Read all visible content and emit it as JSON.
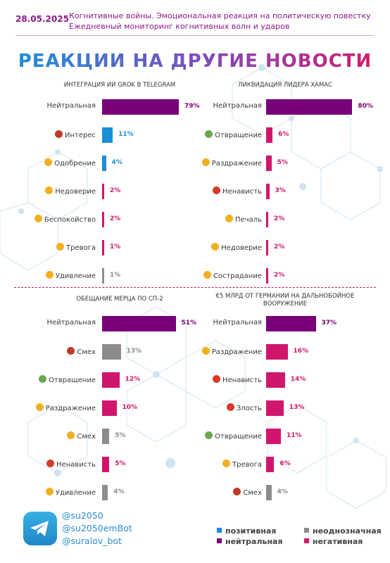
{
  "header": {
    "date": "28.05.2025",
    "line1": "Когнитивные войны. Эмоциональная реакция на политическую повестку",
    "line2": "Ежедневный мониторинг когнитивных волн и ударов"
  },
  "main_title": "РЕАКЦИИ НА ДРУГИЕ НОВОСТИ",
  "colors": {
    "neutral": "#780078",
    "positive": "#1a8fd8",
    "ambiguous": "#8c8c8c",
    "negative": "#d0166c"
  },
  "chart_data": [
    {
      "type": "bar",
      "title": "ИНТЕГРАЦИЯ ИИ GROK В TELEGRAM",
      "categories": [
        "Нейтральная",
        "Интерес",
        "Одобрение",
        "Недоверие",
        "Беспокойство",
        "Тревога",
        "Удивление"
      ],
      "values": [
        79,
        11,
        4,
        2,
        2,
        1,
        1
      ],
      "labels": [
        "79%",
        "11%",
        "4%",
        "2%",
        "2%",
        "1%",
        "1%"
      ],
      "kinds": [
        "neutral",
        "positive",
        "positive",
        "negative",
        "negative",
        "negative",
        "ambiguous"
      ],
      "unit": "%"
    },
    {
      "type": "bar",
      "title": "ЛИКВИДАЦИЯ ЛИДЕРА ХАМАС",
      "categories": [
        "Нейтральная",
        "Отвращение",
        "Раздражение",
        "Ненависть",
        "Печаль",
        "Недоверие",
        "Сострадание"
      ],
      "values": [
        80,
        6,
        5,
        3,
        2,
        2,
        2
      ],
      "labels": [
        "80%",
        "6%",
        "5%",
        "3%",
        "2%",
        "2%",
        "2%"
      ],
      "kinds": [
        "neutral",
        "negative",
        "negative",
        "negative",
        "negative",
        "negative",
        "negative"
      ],
      "unit": "%"
    },
    {
      "type": "bar",
      "title": "ОБЕЩАНИЕ МЕРЦА ПО СП-2",
      "categories": [
        "Нейтральная",
        "Смех",
        "Отвращение",
        "Раздражение",
        "Смех",
        "Ненависть",
        "Удивление"
      ],
      "values": [
        51,
        13,
        12,
        10,
        5,
        5,
        4
      ],
      "labels": [
        "51%",
        "13%",
        "12%",
        "10%",
        "5%",
        "5%",
        "4%"
      ],
      "kinds": [
        "neutral",
        "ambiguous",
        "negative",
        "negative",
        "ambiguous",
        "negative",
        "ambiguous"
      ],
      "unit": "%"
    },
    {
      "type": "bar",
      "title": "€5 МЛРД ОТ ГЕРМАНИИ НА ДАЛЬНОБОЙНОЕ ВООРУЖЕНИЕ",
      "categories": [
        "Нейтральная",
        "Раздражение",
        "Ненависть",
        "Злость",
        "Отвращение",
        "Тревога",
        "Смех"
      ],
      "values": [
        37,
        16,
        14,
        13,
        11,
        6,
        4
      ],
      "labels": [
        "37%",
        "16%",
        "14%",
        "13%",
        "11%",
        "6%",
        "4%"
      ],
      "kinds": [
        "neutral",
        "negative",
        "negative",
        "negative",
        "negative",
        "negative",
        "ambiguous"
      ],
      "unit": "%"
    }
  ],
  "emoji_icons": [
    [
      "",
      "exclamation-question-icon",
      "handshake-icon",
      "angry-face-icon",
      "worried-face-icon",
      "anxious-face-icon",
      "surprised-face-icon"
    ],
    [
      "",
      "nauseated-face-icon",
      "annoyed-face-icon",
      "rage-face-icon",
      "sad-face-icon",
      "skeptical-face-icon",
      "compassion-face-icon"
    ],
    [
      "",
      "devil-laugh-icon",
      "nauseated-face-icon",
      "annoyed-face-icon",
      "laughing-face-icon",
      "rage-face-icon",
      "astonished-face-icon"
    ],
    [
      "",
      "annoyed-face-icon",
      "rage-face-icon",
      "angry-red-face-icon",
      "nauseated-face-icon",
      "anxious-face-icon",
      "devil-laugh-icon"
    ]
  ],
  "footer": {
    "handles": [
      "@su2050",
      "@su2050emBot",
      "@suralov_bot"
    ],
    "legend": {
      "positive": "позитивная",
      "neutral": "нейтральная",
      "ambiguous": "неоднозначная",
      "negative": "негативная"
    }
  }
}
